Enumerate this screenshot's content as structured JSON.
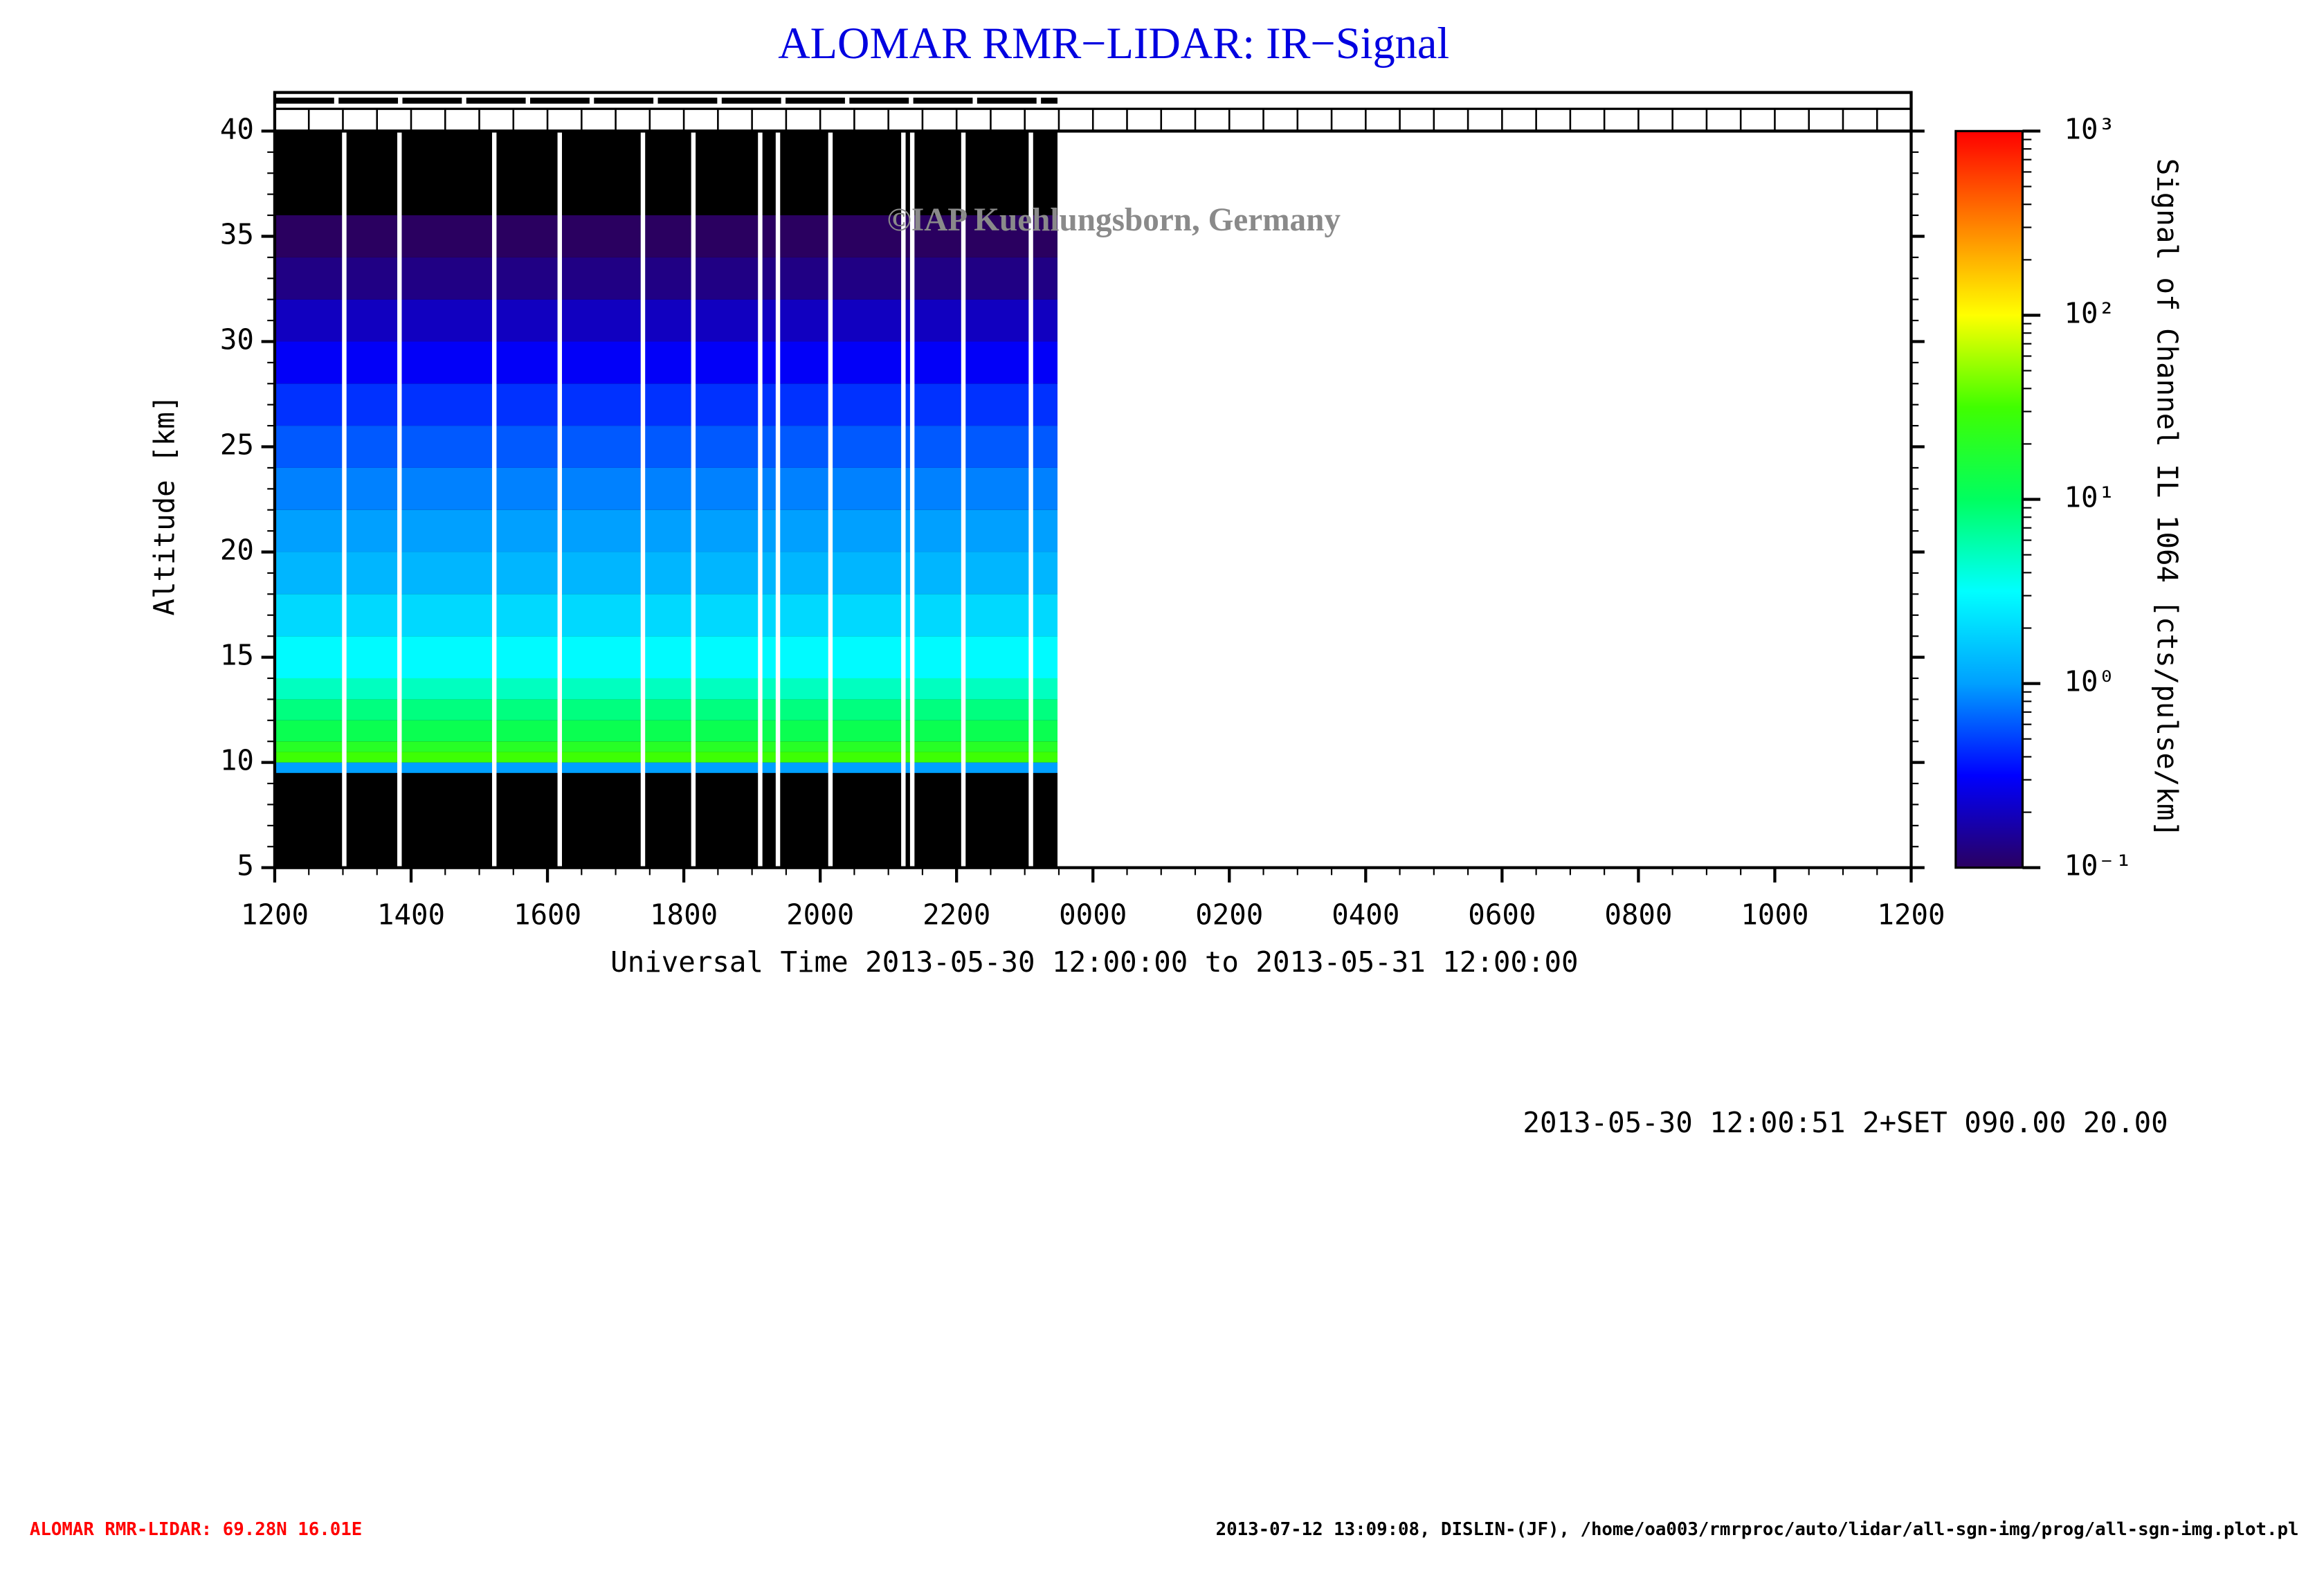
{
  "chart_data": {
    "type": "heatmap",
    "title": "ALOMAR RMR−LIDAR: IR−Signal",
    "watermark": "©IAP Kuehlungsborn, Germany",
    "y_label": "Altitude [km]",
    "x_label": "Universal Time 2013-05-30 12:00:00 to 2013-05-31 12:00:00",
    "colorbar_label": "Signal of Channel IL 1064 [cts/pulse/km]",
    "info": "2013-05-30 12:00:51 2+SET 090.00 20.00",
    "footer_left": "ALOMAR RMR-LIDAR: 69.28N 16.01E",
    "footer_right": "2013-07-12 13:09:08, DISLIN-(JF), /home/oa003/rmrproc/auto/lidar/all-sgn-img/prog/all-sgn-img.plot.pl",
    "xlim": [
      0,
      24
    ],
    "xticks": [
      {
        "value": 0,
        "label": "1200"
      },
      {
        "value": 2,
        "label": "1400"
      },
      {
        "value": 4,
        "label": "1600"
      },
      {
        "value": 6,
        "label": "1800"
      },
      {
        "value": 8,
        "label": "2000"
      },
      {
        "value": 10,
        "label": "2200"
      },
      {
        "value": 12,
        "label": "0000"
      },
      {
        "value": 14,
        "label": "0200"
      },
      {
        "value": 16,
        "label": "0400"
      },
      {
        "value": 18,
        "label": "0600"
      },
      {
        "value": 20,
        "label": "0800"
      },
      {
        "value": 22,
        "label": "1000"
      },
      {
        "value": 24,
        "label": "1200"
      }
    ],
    "ylim": [
      5,
      40
    ],
    "yticks": [
      5,
      10,
      15,
      20,
      25,
      30,
      35,
      40
    ],
    "clim": [
      0.1,
      1000
    ],
    "log_color": true,
    "cticks": [
      {
        "value": 0.1,
        "label": "10⁻¹"
      },
      {
        "value": 1,
        "label": "10⁰"
      },
      {
        "value": 10,
        "label": "10¹"
      },
      {
        "value": 100,
        "label": "10²"
      },
      {
        "value": 1000,
        "label": "10³"
      }
    ],
    "colormap": [
      "#2a0060",
      "#0000ff",
      "#00a0ff",
      "#00ffff",
      "#00ff60",
      "#40ff00",
      "#ffff00",
      "#ff8000",
      "#ff0000"
    ],
    "measurement": [
      0,
      11.48
    ],
    "gaps": [
      1.02,
      1.83,
      3.22,
      4.18,
      5.4,
      6.14,
      7.12,
      7.38,
      8.15,
      9.22,
      9.35,
      10.1,
      11.09
    ],
    "altitude": [
      9.5,
      10,
      10.5,
      11,
      12,
      13,
      14,
      16,
      18,
      20,
      22,
      24,
      26,
      28,
      30,
      32,
      34,
      36,
      38
    ],
    "values": [
      1,
      30,
      20,
      12,
      8,
      5,
      3,
      2,
      1.3,
      1,
      0.8,
      0.6,
      0.45,
      0.3,
      0.2,
      0.13,
      0.1,
      0.08,
      0.06
    ]
  }
}
